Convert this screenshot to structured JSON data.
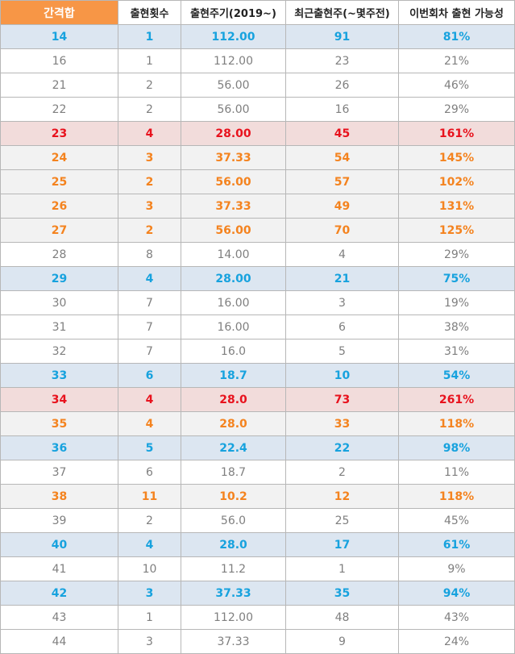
{
  "header": {
    "col1": "간격합",
    "col2": "출현횟수",
    "col3": "출현주기(2019~)",
    "col4": "최근출현주(~몇주전)",
    "col5": "이번회차 출현 가능성"
  },
  "colors": {
    "header_accent": "#f79646",
    "blue_text": "#17a2de",
    "blue_bg": "#dce6f1",
    "red_text": "#e8121d",
    "red_bg": "#f2dcdb",
    "orange_text": "#f4831f",
    "orange_bg": "#f2f2f2",
    "plain_text": "#7f7f7f"
  },
  "rows": [
    {
      "style": "blue",
      "sum": "14",
      "count": "1",
      "cycle": "112.00",
      "recent": "91",
      "chance": "81%"
    },
    {
      "style": "plain",
      "sum": "16",
      "count": "1",
      "cycle": "112.00",
      "recent": "23",
      "chance": "21%"
    },
    {
      "style": "plain",
      "sum": "21",
      "count": "2",
      "cycle": "56.00",
      "recent": "26",
      "chance": "46%"
    },
    {
      "style": "plain",
      "sum": "22",
      "count": "2",
      "cycle": "56.00",
      "recent": "16",
      "chance": "29%"
    },
    {
      "style": "red",
      "sum": "23",
      "count": "4",
      "cycle": "28.00",
      "recent": "45",
      "chance": "161%"
    },
    {
      "style": "orange",
      "sum": "24",
      "count": "3",
      "cycle": "37.33",
      "recent": "54",
      "chance": "145%"
    },
    {
      "style": "orange",
      "sum": "25",
      "count": "2",
      "cycle": "56.00",
      "recent": "57",
      "chance": "102%"
    },
    {
      "style": "orange",
      "sum": "26",
      "count": "3",
      "cycle": "37.33",
      "recent": "49",
      "chance": "131%"
    },
    {
      "style": "orange",
      "sum": "27",
      "count": "2",
      "cycle": "56.00",
      "recent": "70",
      "chance": "125%"
    },
    {
      "style": "plain",
      "sum": "28",
      "count": "8",
      "cycle": "14.00",
      "recent": "4",
      "chance": "29%"
    },
    {
      "style": "blue",
      "sum": "29",
      "count": "4",
      "cycle": "28.00",
      "recent": "21",
      "chance": "75%"
    },
    {
      "style": "plain",
      "sum": "30",
      "count": "7",
      "cycle": "16.00",
      "recent": "3",
      "chance": "19%"
    },
    {
      "style": "plain",
      "sum": "31",
      "count": "7",
      "cycle": "16.00",
      "recent": "6",
      "chance": "38%"
    },
    {
      "style": "plain",
      "sum": "32",
      "count": "7",
      "cycle": "16.0",
      "recent": "5",
      "chance": "31%"
    },
    {
      "style": "blue",
      "sum": "33",
      "count": "6",
      "cycle": "18.7",
      "recent": "10",
      "chance": "54%"
    },
    {
      "style": "red",
      "sum": "34",
      "count": "4",
      "cycle": "28.0",
      "recent": "73",
      "chance": "261%"
    },
    {
      "style": "orange",
      "sum": "35",
      "count": "4",
      "cycle": "28.0",
      "recent": "33",
      "chance": "118%"
    },
    {
      "style": "blue",
      "sum": "36",
      "count": "5",
      "cycle": "22.4",
      "recent": "22",
      "chance": "98%"
    },
    {
      "style": "plain",
      "sum": "37",
      "count": "6",
      "cycle": "18.7",
      "recent": "2",
      "chance": "11%"
    },
    {
      "style": "orange",
      "sum": "38",
      "count": "11",
      "cycle": "10.2",
      "recent": "12",
      "chance": "118%"
    },
    {
      "style": "plain",
      "sum": "39",
      "count": "2",
      "cycle": "56.0",
      "recent": "25",
      "chance": "45%"
    },
    {
      "style": "blue",
      "sum": "40",
      "count": "4",
      "cycle": "28.0",
      "recent": "17",
      "chance": "61%"
    },
    {
      "style": "plain",
      "sum": "41",
      "count": "10",
      "cycle": "11.2",
      "recent": "1",
      "chance": "9%"
    },
    {
      "style": "blue",
      "sum": "42",
      "count": "3",
      "cycle": "37.33",
      "recent": "35",
      "chance": "94%"
    },
    {
      "style": "plain",
      "sum": "43",
      "count": "1",
      "cycle": "112.00",
      "recent": "48",
      "chance": "43%"
    },
    {
      "style": "plain",
      "sum": "44",
      "count": "3",
      "cycle": "37.33",
      "recent": "9",
      "chance": "24%"
    }
  ]
}
